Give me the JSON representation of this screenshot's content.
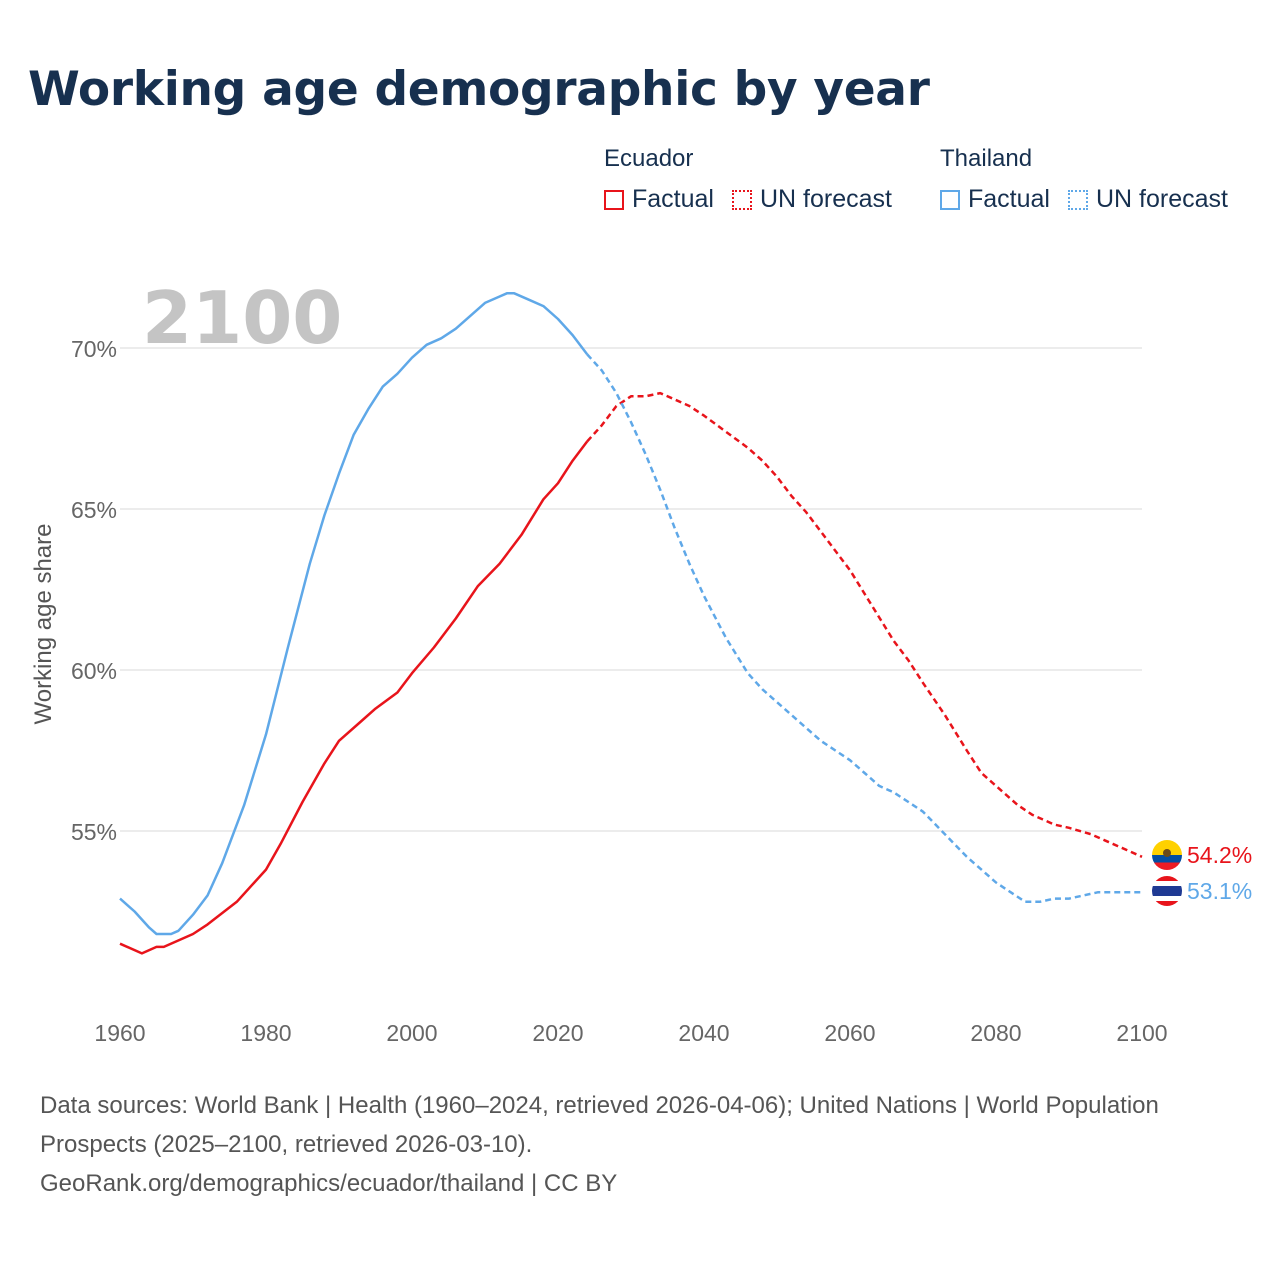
{
  "title": "Working age demographic by year",
  "legend": {
    "groups": [
      {
        "name": "Ecuador",
        "factual": "Factual",
        "forecast": "UN forecast",
        "color": "#e8141b"
      },
      {
        "name": "Thailand",
        "factual": "Factual",
        "forecast": "UN forecast",
        "color": "#5fa8e8"
      }
    ]
  },
  "year_watermark": "2100",
  "chart_data": {
    "type": "line",
    "ylabel": "Working age share",
    "xlabel": "",
    "xlim": [
      1960,
      2100
    ],
    "ylim": [
      50,
      72
    ],
    "x_ticks": [
      1960,
      1980,
      2000,
      2020,
      2040,
      2060,
      2080,
      2100
    ],
    "y_ticks": [
      55,
      60,
      65,
      70
    ],
    "y_tick_labels": [
      "55%",
      "60%",
      "65%",
      "70%"
    ],
    "factual_end_year": 2024,
    "series": [
      {
        "name": "Ecuador",
        "color": "#e8141b",
        "end_label": "54.2%",
        "x": [
          1960,
          1963,
          1965,
          1966,
          1970,
          1972,
          1976,
          1978,
          1980,
          1982,
          1985,
          1988,
          1990,
          1993,
          1995,
          1998,
          2000,
          2003,
          2006,
          2009,
          2012,
          2015,
          2018,
          2020,
          2022,
          2024,
          2026,
          2028,
          2030,
          2032,
          2034,
          2036,
          2038,
          2040,
          2043,
          2046,
          2048,
          2050,
          2052,
          2054,
          2056,
          2058,
          2060,
          2063,
          2066,
          2068,
          2070,
          2073,
          2076,
          2078,
          2080,
          2083,
          2085,
          2088,
          2090,
          2093,
          2095,
          2098,
          2100
        ],
        "values": [
          51.5,
          51.2,
          51.4,
          51.4,
          51.8,
          52.1,
          52.8,
          53.3,
          53.8,
          54.6,
          55.9,
          57.1,
          57.8,
          58.4,
          58.8,
          59.3,
          59.9,
          60.7,
          61.6,
          62.6,
          63.3,
          64.2,
          65.3,
          65.8,
          66.5,
          67.1,
          67.6,
          68.2,
          68.5,
          68.5,
          68.6,
          68.4,
          68.2,
          67.9,
          67.4,
          66.9,
          66.5,
          66.0,
          65.4,
          64.9,
          64.3,
          63.7,
          63.1,
          62.0,
          60.9,
          60.3,
          59.6,
          58.6,
          57.5,
          56.8,
          56.4,
          55.8,
          55.5,
          55.2,
          55.1,
          54.9,
          54.7,
          54.4,
          54.2
        ]
      },
      {
        "name": "Thailand",
        "color": "#5fa8e8",
        "end_label": "53.1%",
        "x": [
          1960,
          1962,
          1964,
          1965,
          1966,
          1967,
          1968,
          1970,
          1972,
          1974,
          1977,
          1980,
          1983,
          1986,
          1988,
          1990,
          1992,
          1994,
          1996,
          1998,
          2000,
          2002,
          2004,
          2006,
          2008,
          2010,
          2012,
          2013,
          2014,
          2016,
          2018,
          2020,
          2022,
          2024,
          2026,
          2028,
          2030,
          2032,
          2034,
          2036,
          2038,
          2040,
          2043,
          2046,
          2048,
          2050,
          2053,
          2056,
          2058,
          2060,
          2062,
          2064,
          2066,
          2068,
          2070,
          2073,
          2076,
          2078,
          2080,
          2082,
          2084,
          2086,
          2088,
          2090,
          2092,
          2094,
          2096,
          2098,
          2100
        ],
        "values": [
          52.9,
          52.5,
          52.0,
          51.8,
          51.8,
          51.8,
          51.9,
          52.4,
          53.0,
          54.0,
          55.8,
          58.0,
          60.7,
          63.3,
          64.8,
          66.1,
          67.3,
          68.1,
          68.8,
          69.2,
          69.7,
          70.1,
          70.3,
          70.6,
          71.0,
          71.4,
          71.6,
          71.7,
          71.7,
          71.5,
          71.3,
          70.9,
          70.4,
          69.8,
          69.3,
          68.6,
          67.7,
          66.7,
          65.6,
          64.4,
          63.3,
          62.3,
          61.0,
          59.9,
          59.4,
          59.0,
          58.4,
          57.8,
          57.5,
          57.2,
          56.8,
          56.4,
          56.2,
          55.9,
          55.6,
          54.9,
          54.2,
          53.8,
          53.4,
          53.1,
          52.8,
          52.8,
          52.9,
          52.9,
          53.0,
          53.1,
          53.1,
          53.1,
          53.1
        ]
      }
    ]
  },
  "footer": {
    "line1": "Data sources: World Bank | Health (1960–2024, retrieved 2026-04-06); United Nations | World Population Prospects (2025–2100, retrieved 2026-03-10).",
    "line2": "GeoRank.org/demographics/ecuador/thailand | CC BY"
  }
}
